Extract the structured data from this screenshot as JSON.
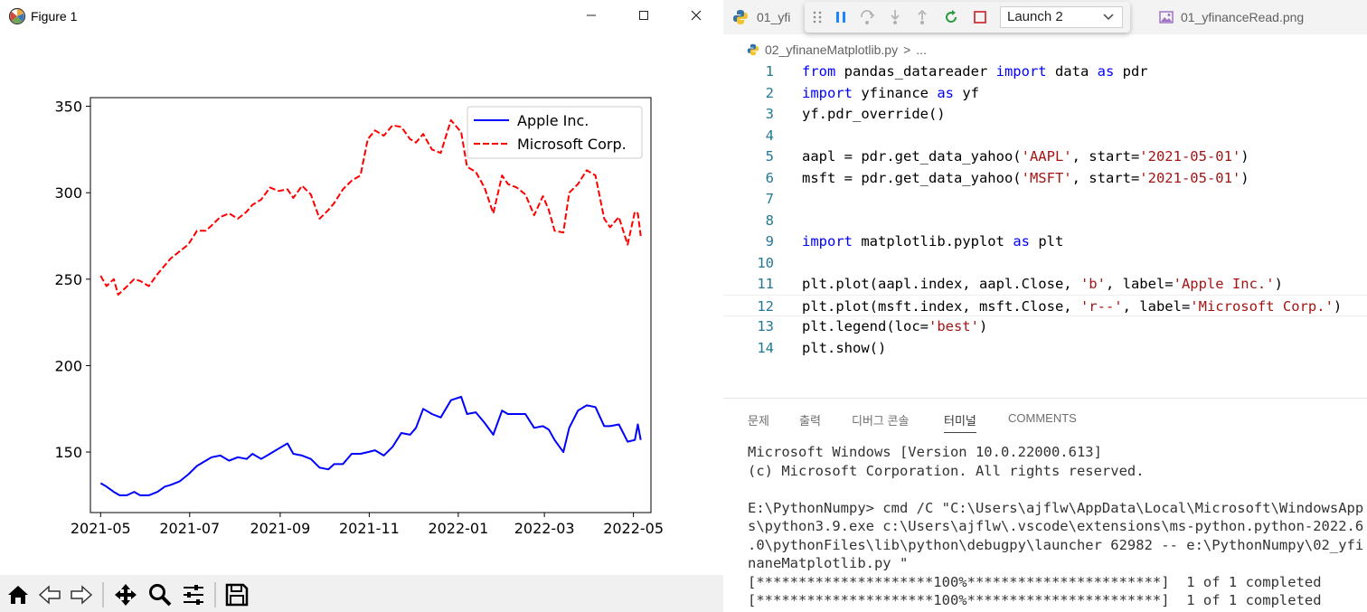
{
  "figure_window": {
    "title": "Figure 1",
    "controls": {
      "minimize": "—",
      "maximize": "☐",
      "close": "✕"
    },
    "toolbar_icons": [
      "home-icon",
      "back-arrow-icon",
      "forward-arrow-icon",
      "pan-icon",
      "zoom-icon",
      "configure-subplots-icon",
      "save-icon"
    ]
  },
  "chart_data": {
    "type": "line",
    "x_tick_labels": [
      "2021-05",
      "2021-07",
      "2021-09",
      "2021-11",
      "2022-01",
      "2022-03",
      "2022-05"
    ],
    "y_ticks": [
      150,
      200,
      250,
      300,
      350
    ],
    "xlim": [
      "2021-04-24",
      "2022-05-13"
    ],
    "ylim": [
      115,
      355
    ],
    "legend_position": "upper-right",
    "grid": false,
    "series": [
      {
        "name": "Apple Inc.",
        "color": "#0000ff",
        "style": "solid",
        "points": [
          [
            "2021-05-01",
            132
          ],
          [
            "2021-05-05",
            130
          ],
          [
            "2021-05-10",
            127
          ],
          [
            "2021-05-14",
            125
          ],
          [
            "2021-05-19",
            125
          ],
          [
            "2021-05-24",
            127
          ],
          [
            "2021-05-28",
            125
          ],
          [
            "2021-06-03",
            125
          ],
          [
            "2021-06-09",
            127
          ],
          [
            "2021-06-14",
            130
          ],
          [
            "2021-06-18",
            131
          ],
          [
            "2021-06-24",
            133
          ],
          [
            "2021-06-30",
            137
          ],
          [
            "2021-07-06",
            142
          ],
          [
            "2021-07-12",
            145
          ],
          [
            "2021-07-16",
            147
          ],
          [
            "2021-07-22",
            148
          ],
          [
            "2021-07-28",
            145
          ],
          [
            "2021-08-03",
            147
          ],
          [
            "2021-08-09",
            146
          ],
          [
            "2021-08-13",
            149
          ],
          [
            "2021-08-19",
            146
          ],
          [
            "2021-08-25",
            149
          ],
          [
            "2021-08-31",
            152
          ],
          [
            "2021-09-06",
            155
          ],
          [
            "2021-09-10",
            149
          ],
          [
            "2021-09-16",
            148
          ],
          [
            "2021-09-22",
            146
          ],
          [
            "2021-09-28",
            141
          ],
          [
            "2021-10-04",
            140
          ],
          [
            "2021-10-08",
            143
          ],
          [
            "2021-10-14",
            143
          ],
          [
            "2021-10-20",
            149
          ],
          [
            "2021-10-26",
            149
          ],
          [
            "2021-10-31",
            150
          ],
          [
            "2021-11-05",
            151
          ],
          [
            "2021-11-11",
            148
          ],
          [
            "2021-11-17",
            153
          ],
          [
            "2021-11-23",
            161
          ],
          [
            "2021-11-29",
            160
          ],
          [
            "2021-12-03",
            164
          ],
          [
            "2021-12-08",
            175
          ],
          [
            "2021-12-14",
            172
          ],
          [
            "2021-12-20",
            170
          ],
          [
            "2021-12-27",
            180
          ],
          [
            "2022-01-03",
            182
          ],
          [
            "2022-01-07",
            172
          ],
          [
            "2022-01-13",
            173
          ],
          [
            "2022-01-19",
            167
          ],
          [
            "2022-01-25",
            160
          ],
          [
            "2022-01-31",
            174
          ],
          [
            "2022-02-04",
            172
          ],
          [
            "2022-02-10",
            172
          ],
          [
            "2022-02-16",
            172
          ],
          [
            "2022-02-22",
            164
          ],
          [
            "2022-02-28",
            165
          ],
          [
            "2022-03-04",
            163
          ],
          [
            "2022-03-08",
            157
          ],
          [
            "2022-03-14",
            150
          ],
          [
            "2022-03-18",
            164
          ],
          [
            "2022-03-24",
            174
          ],
          [
            "2022-03-30",
            177
          ],
          [
            "2022-04-05",
            176
          ],
          [
            "2022-04-11",
            165
          ],
          [
            "2022-04-15",
            165
          ],
          [
            "2022-04-21",
            166
          ],
          [
            "2022-04-27",
            156
          ],
          [
            "2022-05-02",
            157
          ],
          [
            "2022-05-04",
            166
          ],
          [
            "2022-05-06",
            157
          ]
        ]
      },
      {
        "name": "Microsoft Corp.",
        "color": "#ff0000",
        "style": "dashed",
        "points": [
          [
            "2021-05-01",
            252
          ],
          [
            "2021-05-05",
            246
          ],
          [
            "2021-05-10",
            250
          ],
          [
            "2021-05-13",
            241
          ],
          [
            "2021-05-18",
            245
          ],
          [
            "2021-05-24",
            250
          ],
          [
            "2021-05-28",
            249
          ],
          [
            "2021-06-03",
            246
          ],
          [
            "2021-06-09",
            253
          ],
          [
            "2021-06-14",
            258
          ],
          [
            "2021-06-18",
            262
          ],
          [
            "2021-06-24",
            266
          ],
          [
            "2021-06-30",
            270
          ],
          [
            "2021-07-06",
            278
          ],
          [
            "2021-07-12",
            278
          ],
          [
            "2021-07-16",
            281
          ],
          [
            "2021-07-22",
            286
          ],
          [
            "2021-07-28",
            288
          ],
          [
            "2021-08-03",
            285
          ],
          [
            "2021-08-09",
            289
          ],
          [
            "2021-08-13",
            293
          ],
          [
            "2021-08-19",
            296
          ],
          [
            "2021-08-25",
            303
          ],
          [
            "2021-08-31",
            301
          ],
          [
            "2021-09-06",
            302
          ],
          [
            "2021-09-10",
            297
          ],
          [
            "2021-09-16",
            304
          ],
          [
            "2021-09-22",
            299
          ],
          [
            "2021-09-28",
            285
          ],
          [
            "2021-10-04",
            290
          ],
          [
            "2021-10-08",
            294
          ],
          [
            "2021-10-14",
            302
          ],
          [
            "2021-10-20",
            307
          ],
          [
            "2021-10-26",
            310
          ],
          [
            "2021-10-31",
            331
          ],
          [
            "2021-11-05",
            336
          ],
          [
            "2021-11-11",
            333
          ],
          [
            "2021-11-17",
            339
          ],
          [
            "2021-11-23",
            338
          ],
          [
            "2021-11-29",
            331
          ],
          [
            "2021-12-03",
            329
          ],
          [
            "2021-12-08",
            334
          ],
          [
            "2021-12-14",
            325
          ],
          [
            "2021-12-20",
            323
          ],
          [
            "2021-12-27",
            342
          ],
          [
            "2022-01-03",
            335
          ],
          [
            "2022-01-07",
            315
          ],
          [
            "2022-01-13",
            312
          ],
          [
            "2022-01-19",
            303
          ],
          [
            "2022-01-25",
            288
          ],
          [
            "2022-01-31",
            310
          ],
          [
            "2022-02-04",
            305
          ],
          [
            "2022-02-10",
            303
          ],
          [
            "2022-02-16",
            299
          ],
          [
            "2022-02-22",
            287
          ],
          [
            "2022-02-28",
            298
          ],
          [
            "2022-03-04",
            290
          ],
          [
            "2022-03-08",
            278
          ],
          [
            "2022-03-14",
            277
          ],
          [
            "2022-03-18",
            300
          ],
          [
            "2022-03-24",
            305
          ],
          [
            "2022-03-30",
            313
          ],
          [
            "2022-04-05",
            310
          ],
          [
            "2022-04-11",
            285
          ],
          [
            "2022-04-15",
            280
          ],
          [
            "2022-04-21",
            286
          ],
          [
            "2022-04-27",
            270
          ],
          [
            "2022-05-02",
            289
          ],
          [
            "2022-05-04",
            288
          ],
          [
            "2022-05-06",
            275
          ]
        ]
      }
    ]
  },
  "vscode": {
    "tabs": [
      {
        "label": "01_yfi",
        "icon": "python-icon"
      },
      {
        "label": "01_yfinanceRead.png",
        "icon": "image-file-icon"
      }
    ],
    "debug": {
      "icons": [
        "drag-handle-icon",
        "pause-icon",
        "step-over-icon",
        "step-into-icon",
        "step-out-icon",
        "restart-icon",
        "stop-icon"
      ],
      "launch_config": "Launch 2"
    },
    "breadcrumb": {
      "file": "02_yfinaneMatplotlib.py",
      "separator": ">",
      "rest": "..."
    },
    "code_lines": [
      {
        "num": "1",
        "segments": [
          [
            "kw",
            "from"
          ],
          [
            "plain",
            " pandas_datareader "
          ],
          [
            "kw",
            "import"
          ],
          [
            "plain",
            " data "
          ],
          [
            "kw",
            "as"
          ],
          [
            "plain",
            " pdr"
          ]
        ]
      },
      {
        "num": "2",
        "segments": [
          [
            "kw",
            "import"
          ],
          [
            "plain",
            " yfinance "
          ],
          [
            "kw",
            "as"
          ],
          [
            "plain",
            " yf"
          ]
        ]
      },
      {
        "num": "3",
        "segments": [
          [
            "plain",
            "yf.pdr_override()"
          ]
        ]
      },
      {
        "num": "4",
        "segments": []
      },
      {
        "num": "5",
        "segments": [
          [
            "plain",
            "aapl = pdr.get_data_yahoo("
          ],
          [
            "str",
            "'AAPL'"
          ],
          [
            "plain",
            ", start="
          ],
          [
            "str",
            "'2021-05-01'"
          ],
          [
            "plain",
            ")"
          ]
        ]
      },
      {
        "num": "6",
        "segments": [
          [
            "plain",
            "msft = pdr.get_data_yahoo("
          ],
          [
            "str",
            "'MSFT'"
          ],
          [
            "plain",
            ", start="
          ],
          [
            "str",
            "'2021-05-01'"
          ],
          [
            "plain",
            ")"
          ]
        ]
      },
      {
        "num": "7",
        "segments": []
      },
      {
        "num": "8",
        "segments": []
      },
      {
        "num": "9",
        "segments": [
          [
            "kw",
            "import"
          ],
          [
            "plain",
            " matplotlib.pyplot "
          ],
          [
            "kw",
            "as"
          ],
          [
            "plain",
            " plt"
          ]
        ]
      },
      {
        "num": "10",
        "segments": []
      },
      {
        "num": "11",
        "segments": [
          [
            "plain",
            "plt.plot(aapl.index, aapl.Close, "
          ],
          [
            "str",
            "'b'"
          ],
          [
            "plain",
            ", label="
          ],
          [
            "str",
            "'Apple Inc.'"
          ],
          [
            "plain",
            ")"
          ]
        ]
      },
      {
        "num": "12",
        "segments": [
          [
            "plain",
            "plt.plot(msft.index, msft.Close, "
          ],
          [
            "str",
            "'r--'"
          ],
          [
            "plain",
            ", label="
          ],
          [
            "str",
            "'Microsoft Corp.'"
          ],
          [
            "plain",
            ")"
          ]
        ]
      },
      {
        "num": "13",
        "segments": [
          [
            "plain",
            "plt.legend(loc="
          ],
          [
            "str",
            "'best'"
          ],
          [
            "plain",
            ")"
          ]
        ]
      },
      {
        "num": "14",
        "segments": [
          [
            "plain",
            "plt.show()"
          ]
        ]
      }
    ],
    "panel": {
      "tabs": [
        "문제",
        "출력",
        "디버그 콘솔",
        "터미널",
        "COMMENTS"
      ],
      "active_tab": "터미널",
      "terminal_lines": [
        "Microsoft Windows [Version 10.0.22000.613]",
        "(c) Microsoft Corporation. All rights reserved.",
        "",
        "E:\\PythonNumpy> cmd /C \"C:\\Users\\ajflw\\AppData\\Local\\Microsoft\\WindowsApp",
        "s\\python3.9.exe c:\\Users\\ajflw\\.vscode\\extensions\\ms-python.python-2022.6",
        ".0\\pythonFiles\\lib\\python\\debugpy\\launcher 62982 -- e:\\PythonNumpy\\02_yfi",
        "naneMatplotlib.py \"",
        "[*********************100%***********************]  1 of 1 completed",
        "[*********************100%***********************]  1 of 1 completed"
      ]
    }
  }
}
